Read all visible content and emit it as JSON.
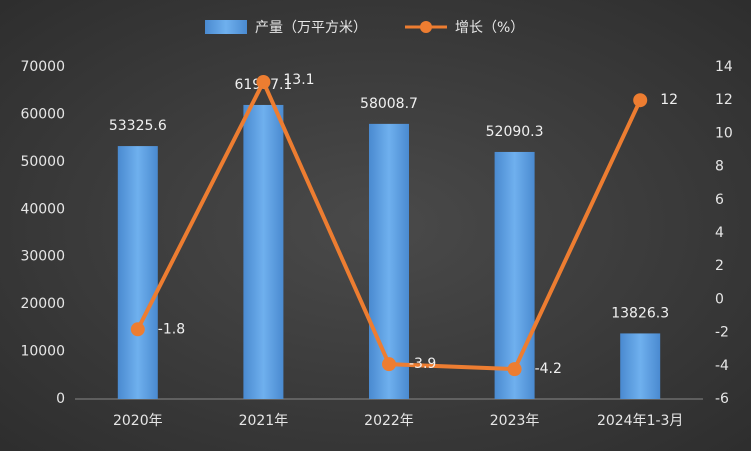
{
  "chart_data": {
    "type": "bar",
    "categories": [
      "2020年",
      "2021年",
      "2022年",
      "2023年",
      "2024年1-3月"
    ],
    "series": [
      {
        "name": "产量（万平方米）",
        "type": "bar",
        "color": "#5b9bd5",
        "values": [
          53325.6,
          61997.1,
          58008.7,
          52090.3,
          13826.3
        ]
      },
      {
        "name": "增长（%）",
        "type": "line",
        "axis": "y2",
        "color": "#ed7d31",
        "values": [
          -1.8,
          13.1,
          -3.9,
          -4.2,
          12
        ]
      }
    ],
    "ylim": [
      0,
      70000
    ],
    "yticks": [
      0,
      10000,
      20000,
      30000,
      40000,
      50000,
      60000,
      70000
    ],
    "y2lim": [
      -6,
      14
    ],
    "y2ticks": [
      -6,
      -4,
      -2,
      0,
      2,
      4,
      6,
      8,
      10,
      12,
      14
    ],
    "legend": "top"
  }
}
